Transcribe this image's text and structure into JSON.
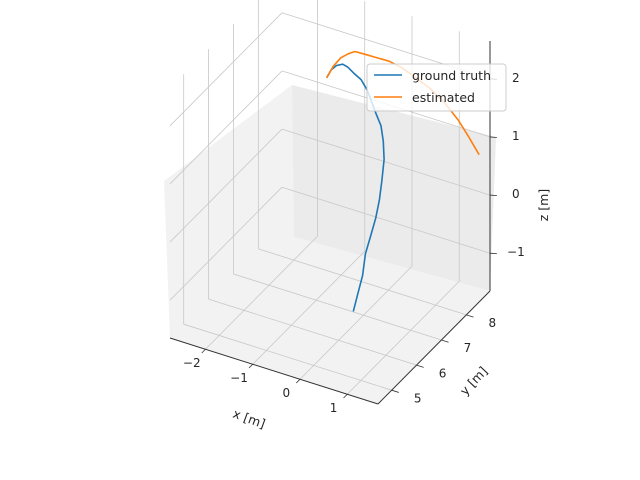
{
  "chart_data": {
    "type": "line",
    "projection": "3d",
    "xlabel": "x [m]",
    "ylabel": "y [m]",
    "zlabel": "z [m]",
    "x_ticks": [
      "−2",
      "−1",
      "0",
      "1"
    ],
    "y_ticks": [
      "5",
      "6",
      "7",
      "8"
    ],
    "z_ticks": [
      "−1",
      "0",
      "1",
      "2"
    ],
    "grid": true,
    "legend_position": "top-right",
    "series": [
      {
        "name": "ground truth",
        "color": "#1f77b4",
        "x": [
          0.1,
          0.12,
          0.14,
          0.12,
          0.15,
          0.18,
          0.18,
          0.15,
          0.12,
          0.05,
          -0.05,
          -0.18,
          -0.3,
          -0.42,
          -0.55,
          -0.68,
          -0.78,
          -0.86,
          -0.94,
          -1.0,
          -1.04
        ],
        "y": [
          6.4,
          6.55,
          6.7,
          6.85,
          7.0,
          7.15,
          7.3,
          7.45,
          7.6,
          7.7,
          7.8,
          7.85,
          7.9,
          7.95,
          7.95,
          7.9,
          7.85,
          7.8,
          7.7,
          7.6,
          7.5
        ],
        "z": [
          -1.3,
          -1.05,
          -0.8,
          -0.5,
          -0.25,
          0.0,
          0.25,
          0.5,
          0.8,
          1.05,
          1.25,
          1.4,
          1.55,
          1.7,
          1.85,
          1.95,
          2.05,
          2.1,
          2.1,
          2.05,
          1.95
        ]
      },
      {
        "name": "estimated",
        "color": "#ff7f0e",
        "x": [
          -1.04,
          -0.98,
          -0.9,
          -0.8,
          -0.68,
          -0.52,
          -0.33,
          -0.12,
          0.1,
          0.34,
          0.58,
          0.8,
          1.0,
          1.18,
          1.34
        ],
        "y": [
          7.5,
          7.65,
          7.8,
          7.9,
          7.95,
          8.05,
          8.15,
          8.25,
          8.35,
          8.45,
          8.6,
          8.75,
          8.9,
          9.0,
          9.1
        ],
        "z": [
          1.95,
          2.1,
          2.2,
          2.25,
          2.3,
          2.25,
          2.2,
          2.15,
          2.05,
          1.9,
          1.7,
          1.45,
          1.15,
          0.85,
          0.55
        ]
      }
    ]
  }
}
